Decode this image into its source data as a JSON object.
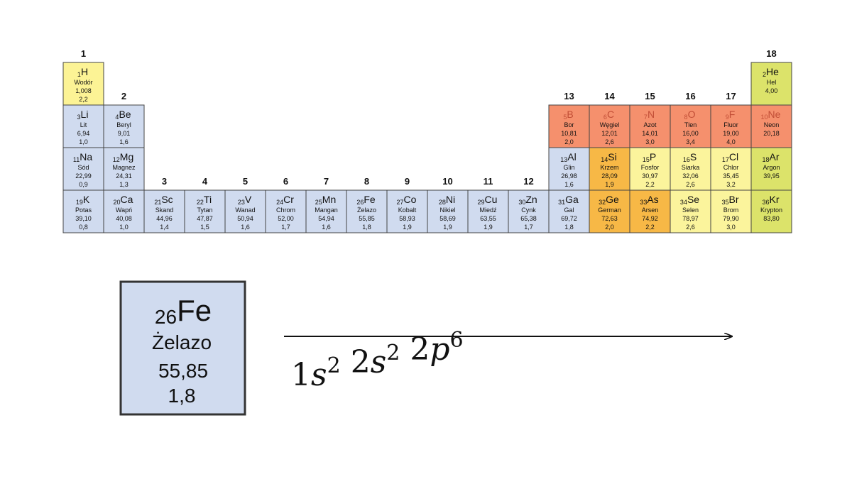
{
  "groups": [
    "1",
    "2",
    "3",
    "4",
    "5",
    "6",
    "7",
    "8",
    "9",
    "10",
    "11",
    "12",
    "13",
    "14",
    "15",
    "16",
    "17",
    "18"
  ],
  "rows": [
    [
      {
        "z": "1",
        "symbol": "H",
        "name": "Wodór",
        "mass": "1,008",
        "en": "2,2",
        "color": "#fcf395"
      },
      null,
      null,
      null,
      null,
      null,
      null,
      null,
      null,
      null,
      null,
      null,
      null,
      null,
      null,
      null,
      null,
      {
        "z": "2",
        "symbol": "He",
        "name": "Hel",
        "mass": "4,00",
        "color": "#dce36a"
      }
    ],
    [
      {
        "z": "3",
        "symbol": "Li",
        "name": "Lit",
        "mass": "6,94",
        "en": "1,0",
        "color": "#d0dbef"
      },
      {
        "z": "4",
        "symbol": "Be",
        "name": "Beryl",
        "mass": "9,01",
        "en": "1,6",
        "color": "#d0dbef"
      },
      null,
      null,
      null,
      null,
      null,
      null,
      null,
      null,
      null,
      null,
      {
        "z": "5",
        "symbol": "B",
        "name": "Bor",
        "mass": "10,81",
        "en": "2,0",
        "color": "#f5906d",
        "text_color": "#c24e36"
      },
      {
        "z": "6",
        "symbol": "C",
        "name": "Węgiel",
        "mass": "12,01",
        "en": "2,6",
        "color": "#f5906d",
        "text_color": "#c24e36"
      },
      {
        "z": "7",
        "symbol": "N",
        "name": "Azot",
        "mass": "14,01",
        "en": "3,0",
        "color": "#f5906d",
        "text_color": "#c24e36"
      },
      {
        "z": "8",
        "symbol": "O",
        "name": "Tlen",
        "mass": "16,00",
        "en": "3,4",
        "color": "#f5906d",
        "text_color": "#c24e36"
      },
      {
        "z": "9",
        "symbol": "F",
        "name": "Fluor",
        "mass": "19,00",
        "en": "4,0",
        "color": "#f5906d",
        "text_color": "#c24e36"
      },
      {
        "z": "10",
        "symbol": "Ne",
        "name": "Neon",
        "mass": "20,18",
        "color": "#f5906d",
        "text_color": "#c24e36"
      }
    ],
    [
      {
        "z": "11",
        "symbol": "Na",
        "name": "Sód",
        "mass": "22,99",
        "en": "0,9",
        "color": "#d0dbef"
      },
      {
        "z": "12",
        "symbol": "Mg",
        "name": "Magnez",
        "mass": "24,31",
        "en": "1,3",
        "color": "#d0dbef"
      },
      null,
      null,
      null,
      null,
      null,
      null,
      null,
      null,
      null,
      null,
      {
        "z": "13",
        "symbol": "Al",
        "name": "Glin",
        "mass": "26,98",
        "en": "1,6",
        "color": "#d0dbef"
      },
      {
        "z": "14",
        "symbol": "Si",
        "name": "Krzem",
        "mass": "28,09",
        "en": "1,9",
        "color": "#f7b846"
      },
      {
        "z": "15",
        "symbol": "P",
        "name": "Fosfor",
        "mass": "30,97",
        "en": "2,2",
        "color": "#fbf49c"
      },
      {
        "z": "16",
        "symbol": "S",
        "name": "Siarka",
        "mass": "32,06",
        "en": "2,6",
        "color": "#fbf49c"
      },
      {
        "z": "17",
        "symbol": "Cl",
        "name": "Chlor",
        "mass": "35,45",
        "en": "3,2",
        "color": "#fbf49c"
      },
      {
        "z": "18",
        "symbol": "Ar",
        "name": "Argon",
        "mass": "39,95",
        "color": "#dce36a"
      }
    ],
    [
      {
        "z": "19",
        "symbol": "K",
        "name": "Potas",
        "mass": "39,10",
        "en": "0,8",
        "color": "#d0dbef"
      },
      {
        "z": "20",
        "symbol": "Ca",
        "name": "Wapń",
        "mass": "40,08",
        "en": "1,0",
        "color": "#d0dbef"
      },
      {
        "z": "21",
        "symbol": "Sc",
        "name": "Skand",
        "mass": "44,96",
        "en": "1,4",
        "color": "#d0dbef"
      },
      {
        "z": "22",
        "symbol": "Ti",
        "name": "Tytan",
        "mass": "47,87",
        "en": "1,5",
        "color": "#d0dbef"
      },
      {
        "z": "23",
        "symbol": "V",
        "name": "Wanad",
        "mass": "50,94",
        "en": "1,6",
        "color": "#d0dbef"
      },
      {
        "z": "24",
        "symbol": "Cr",
        "name": "Chrom",
        "mass": "52,00",
        "en": "1,7",
        "color": "#d0dbef"
      },
      {
        "z": "25",
        "symbol": "Mn",
        "name": "Mangan",
        "mass": "54,94",
        "en": "1,6",
        "color": "#d0dbef"
      },
      {
        "z": "26",
        "symbol": "Fe",
        "name": "Żelazo",
        "mass": "55,85",
        "en": "1,8",
        "color": "#d0dbef"
      },
      {
        "z": "27",
        "symbol": "Co",
        "name": "Kobalt",
        "mass": "58,93",
        "en": "1,9",
        "color": "#d0dbef"
      },
      {
        "z": "28",
        "symbol": "Ni",
        "name": "Nikiel",
        "mass": "58,69",
        "en": "1,9",
        "color": "#d0dbef"
      },
      {
        "z": "29",
        "symbol": "Cu",
        "name": "Miedź",
        "mass": "63,55",
        "en": "1,9",
        "color": "#d0dbef"
      },
      {
        "z": "30",
        "symbol": "Zn",
        "name": "Cynk",
        "mass": "65,38",
        "en": "1,7",
        "color": "#d0dbef"
      },
      {
        "z": "31",
        "symbol": "Ga",
        "name": "Gal",
        "mass": "69,72",
        "en": "1,8",
        "color": "#d0dbef"
      },
      {
        "z": "32",
        "symbol": "Ge",
        "name": "German",
        "mass": "72,63",
        "en": "2,0",
        "color": "#f7b846"
      },
      {
        "z": "33",
        "symbol": "As",
        "name": "Arsen",
        "mass": "74,92",
        "en": "2,2",
        "color": "#f7b846"
      },
      {
        "z": "34",
        "symbol": "Se",
        "name": "Selen",
        "mass": "78,97",
        "en": "2,6",
        "color": "#fbf49c"
      },
      {
        "z": "35",
        "symbol": "Br",
        "name": "Brom",
        "mass": "79,90",
        "en": "3,0",
        "color": "#fbf49c"
      },
      {
        "z": "36",
        "symbol": "Kr",
        "name": "Krypton",
        "mass": "83,80",
        "color": "#dce36a"
      }
    ]
  ],
  "detail": {
    "z": "26",
    "symbol": "Fe",
    "name": "Żelazo",
    "mass": "55,85",
    "en": "1,8",
    "color": "#d0dbef"
  },
  "configuration": [
    {
      "n": "1",
      "l": "s",
      "exp": "2"
    },
    {
      "n": "2",
      "l": "s",
      "exp": "2"
    },
    {
      "n": "2",
      "l": "p",
      "exp": "6"
    }
  ]
}
